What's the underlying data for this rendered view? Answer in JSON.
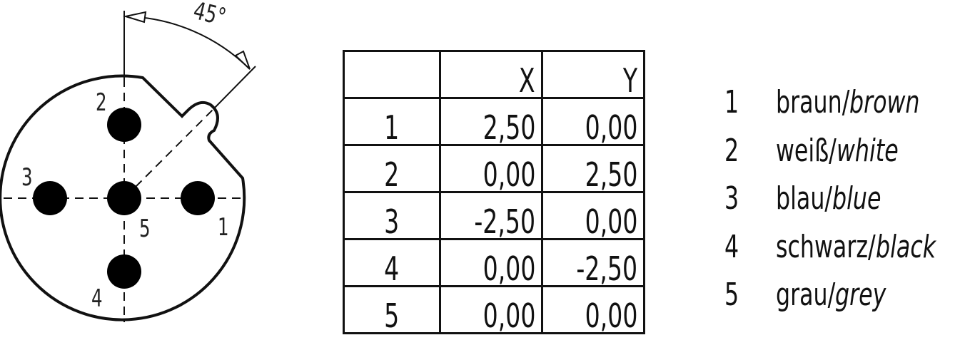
{
  "diagram": {
    "angle_label": "45°",
    "angle_degrees": 45,
    "pin_labels": [
      "1",
      "2",
      "3",
      "4",
      "5"
    ]
  },
  "table": {
    "headers": [
      "",
      "X",
      "Y"
    ],
    "rows": [
      [
        "1",
        "2,50",
        "0,00"
      ],
      [
        "2",
        "0,00",
        "2,50"
      ],
      [
        "3",
        "-2,50",
        "0,00"
      ],
      [
        "4",
        "0,00",
        "-2,50"
      ],
      [
        "5",
        "0,00",
        "0,00"
      ]
    ]
  },
  "legend": [
    {
      "num": "1",
      "de": "braun/",
      "en": "brown"
    },
    {
      "num": "2",
      "de": "weiß/",
      "en": "white"
    },
    {
      "num": "3",
      "de": "blau/",
      "en": "blue"
    },
    {
      "num": "4",
      "de": "schwarz/",
      "en": "black"
    },
    {
      "num": "5",
      "de": "grau/",
      "en": "grey"
    }
  ]
}
